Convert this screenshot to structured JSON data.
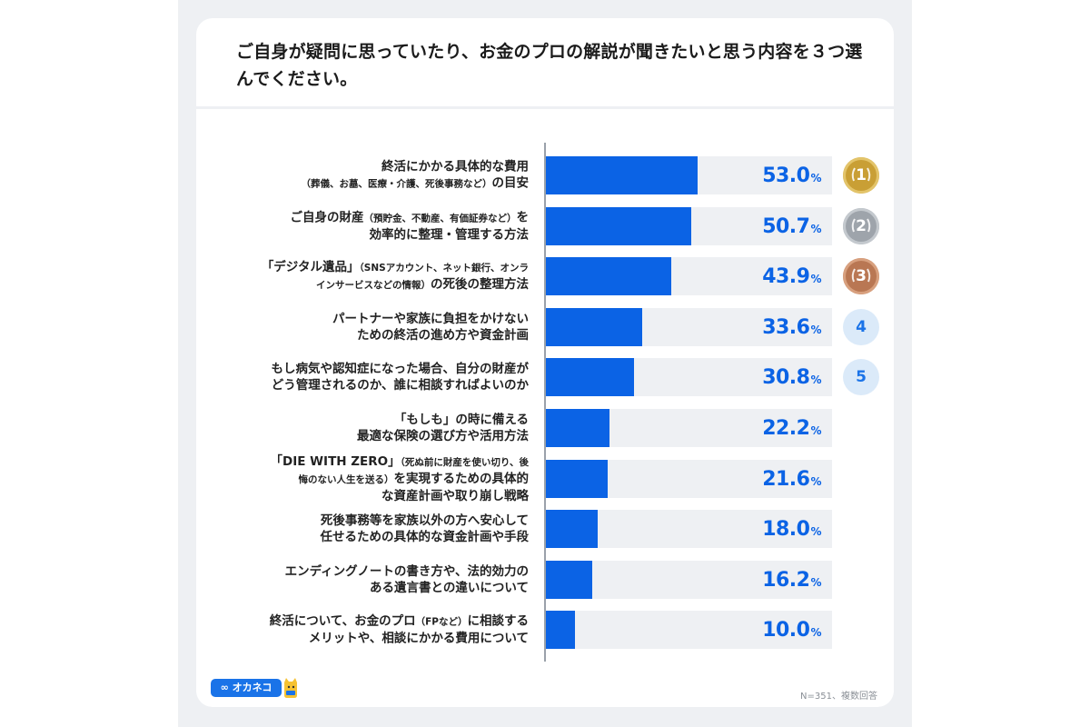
{
  "question": "ご自身が疑問に思っていたり、お金のプロの解説が聞きたいと思う内容を３つ選んでください。",
  "chart_data": {
    "type": "bar",
    "orientation": "horizontal",
    "unit": "%",
    "xlim": [
      0,
      100
    ],
    "items": [
      {
        "lines": [
          {
            "main": "終活にかかる具体的な費用",
            "small": ""
          },
          {
            "main": "の目安",
            "small": "（葬儀、お墓、医療・介護、死後事務など）",
            "small_first": true
          }
        ],
        "value": 53.0,
        "value_text": "53.0",
        "rank": "1"
      },
      {
        "lines": [
          {
            "main": "ご自身の財産",
            "small": "（預貯金、不動産、有価証券など）",
            "tail": "を"
          },
          {
            "main": "効率的に整理・管理する方法",
            "small": ""
          }
        ],
        "value": 50.7,
        "value_text": "50.7",
        "rank": "2"
      },
      {
        "lines": [
          {
            "main": "「デジタル遺品」",
            "small": "（SNSアカウント、ネット銀行、オンラ"
          },
          {
            "main": "の死後の整理方法",
            "small": "インサービスなどの情報）",
            "small_first": true
          }
        ],
        "value": 43.9,
        "value_text": "43.9",
        "rank": "3"
      },
      {
        "lines": [
          {
            "main": "パートナーや家族に負担をかけない",
            "small": ""
          },
          {
            "main": "ための終活の進め方や資金計画",
            "small": ""
          }
        ],
        "value": 33.6,
        "value_text": "33.6",
        "rank": "4"
      },
      {
        "lines": [
          {
            "main": "もし病気や認知症になった場合、自分の財産が",
            "small": ""
          },
          {
            "main": "どう管理されるのか、誰に相談すればよいのか",
            "small": ""
          }
        ],
        "value": 30.8,
        "value_text": "30.8",
        "rank": "5"
      },
      {
        "lines": [
          {
            "main": "「もしも」の時に備える",
            "small": ""
          },
          {
            "main": "最適な保険の選び方や活用方法",
            "small": ""
          }
        ],
        "value": 22.2,
        "value_text": "22.2",
        "rank": ""
      },
      {
        "lines": [
          {
            "main": "「DIE WITH ZERO」",
            "small": "（死ぬ前に財産を使い切り、後"
          },
          {
            "main": "を実現するための具体的",
            "small": "悔のない人生を送る）",
            "small_first": true
          },
          {
            "main": "な資産計画や取り崩し戦略",
            "small": ""
          }
        ],
        "value": 21.6,
        "value_text": "21.6",
        "rank": ""
      },
      {
        "lines": [
          {
            "main": "死後事務等を家族以外の方へ安心して",
            "small": ""
          },
          {
            "main": "任せるための具体的な資金計画や手段",
            "small": ""
          }
        ],
        "value": 18.0,
        "value_text": "18.0",
        "rank": ""
      },
      {
        "lines": [
          {
            "main": "エンディングノートの書き方や、法的効力の",
            "small": ""
          },
          {
            "main": "ある遺言書との違いについて",
            "small": ""
          }
        ],
        "value": 16.2,
        "value_text": "16.2",
        "rank": ""
      },
      {
        "lines": [
          {
            "main": "終活について、お金のプロ",
            "small": "（FPなど）",
            "tail": "に相談する"
          },
          {
            "main": "メリットや、相談にかかる費用について",
            "small": ""
          }
        ],
        "value": 10.0,
        "value_text": "10.0",
        "rank": ""
      }
    ]
  },
  "logo_text": "∞ オカネコ",
  "footnote": "N=351、複数回答",
  "colors": {
    "bar": "#0b63e5",
    "track": "#eef0f3",
    "value": "#0b63e5"
  }
}
